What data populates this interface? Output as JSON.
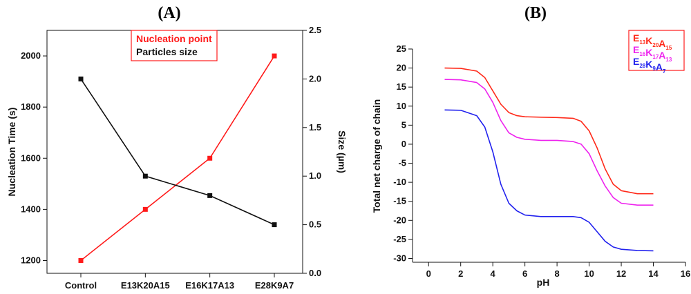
{
  "panel_a_label": "(A)",
  "panel_b_label": "(B)",
  "chart_data": [
    {
      "type": "line",
      "panel": "A",
      "categories": [
        "Control",
        "E13K20A15",
        "E16K17A13",
        "E28K9A7"
      ],
      "series": [
        {
          "name": "Nucleation point",
          "axis": "left",
          "color": "#ff1a1a",
          "marker": "square",
          "values": [
            1200,
            1400,
            1600,
            2000
          ]
        },
        {
          "name": "Particles size",
          "axis": "right",
          "color": "#111111",
          "marker": "square",
          "values": [
            2.0,
            1.0,
            0.8,
            0.5
          ]
        }
      ],
      "ylabel": "Nucleation Time (s)",
      "y2label": "Size (µm)",
      "xlabel": "",
      "ylim": [
        1150,
        2100
      ],
      "yticks": [
        1200,
        1400,
        1600,
        1800,
        2000
      ],
      "y2lim": [
        0.0,
        2.5
      ],
      "y2ticks": [
        "0.0",
        "0.5",
        "1.0",
        "1.5",
        "2.0",
        "2.5"
      ],
      "legend_position": "top-center",
      "legend_border_color": "#ff1a1a"
    },
    {
      "type": "line",
      "panel": "B",
      "xlabel": "pH",
      "ylabel": "Total net charge of chain",
      "xlim": [
        -1,
        16
      ],
      "xticks": [
        0,
        2,
        4,
        6,
        8,
        10,
        12,
        14,
        16
      ],
      "ylim": [
        -31,
        25
      ],
      "yticks": [
        25,
        20,
        15,
        10,
        5,
        0,
        -5,
        -10,
        -15,
        -20,
        -25,
        -30
      ],
      "legend_position": "top-right",
      "legend_border_color": "#ff1a1a",
      "series": [
        {
          "name": "E13K20A15",
          "parts": [
            [
              "E",
              "13"
            ],
            [
              "K",
              "20"
            ],
            [
              "A",
              "15"
            ]
          ],
          "color": "#ff2a1a",
          "x": [
            1,
            2,
            3,
            3.5,
            4,
            4.5,
            5,
            5.5,
            6,
            7,
            8,
            9,
            9.5,
            10,
            10.5,
            11,
            11.5,
            12,
            13,
            14
          ],
          "y": [
            20,
            19.9,
            19.2,
            17.5,
            14,
            10.5,
            8.3,
            7.5,
            7.2,
            7.1,
            7.0,
            6.8,
            6.0,
            3.5,
            -1,
            -6.5,
            -10.5,
            -12.2,
            -13,
            -13
          ]
        },
        {
          "name": "E16K17A13",
          "parts": [
            [
              "E",
              "16"
            ],
            [
              "K",
              "17"
            ],
            [
              "A",
              "13"
            ]
          ],
          "color": "#ee22ee",
          "x": [
            1,
            2,
            3,
            3.5,
            4,
            4.5,
            5,
            5.5,
            6,
            7,
            8,
            9,
            9.5,
            10,
            10.5,
            11,
            11.5,
            12,
            13,
            14
          ],
          "y": [
            17,
            16.9,
            16.2,
            14.5,
            11,
            6.2,
            3.0,
            1.8,
            1.3,
            1.0,
            1.0,
            0.7,
            0,
            -2.5,
            -7,
            -11,
            -14,
            -15.5,
            -16,
            -16
          ]
        },
        {
          "name": "E28K9A7",
          "parts": [
            [
              "E",
              "28"
            ],
            [
              "K",
              "9"
            ],
            [
              "A",
              "7"
            ]
          ],
          "color": "#2222ee",
          "x": [
            1,
            2,
            3,
            3.5,
            4,
            4.5,
            5,
            5.5,
            6,
            7,
            8,
            9,
            9.5,
            10,
            10.5,
            11,
            11.5,
            12,
            13,
            14
          ],
          "y": [
            9,
            8.9,
            7.5,
            4.5,
            -2,
            -10.5,
            -15.5,
            -17.5,
            -18.6,
            -19,
            -19,
            -19,
            -19.3,
            -20.5,
            -23,
            -25.5,
            -27,
            -27.6,
            -27.9,
            -28
          ]
        }
      ]
    }
  ]
}
